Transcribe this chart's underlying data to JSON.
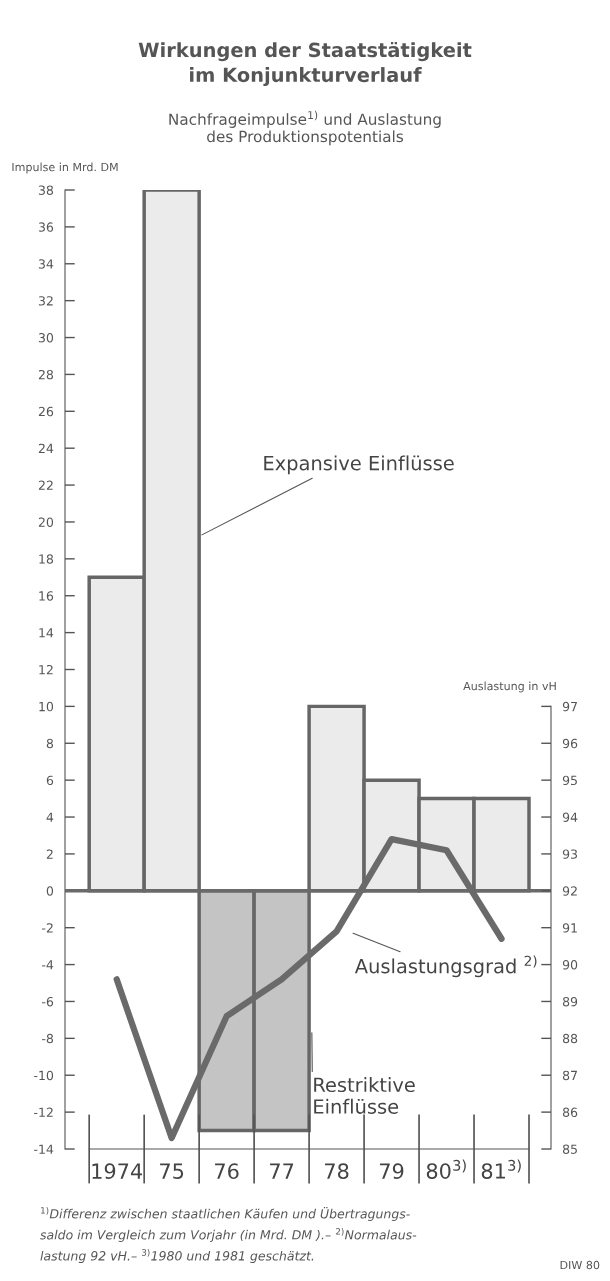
{
  "chart_data": {
    "type": "bar",
    "title": "Wirkungen der Staatstätigkeit\nim Konjunkturverlauf",
    "subtitle": "Nachfrageimpulse$^{1)}$ und Auslastung\ndes Produktionspotentials",
    "ylabel": "Impulse in Mrd. DM",
    "y2label": "Auslastung in vH",
    "categories": [
      "1974",
      "75",
      "76",
      "77",
      "78",
      "79",
      "80$^{3)}$",
      "81$^{3)}$"
    ],
    "series": [
      {
        "type": "bar",
        "name": "Expansive Einflüsse",
        "color": "#ebebeb",
        "values": [
          17,
          38,
          null,
          null,
          10,
          6,
          5,
          5
        ]
      },
      {
        "type": "bar",
        "name": "Restriktive\nEinflüsse",
        "color": "#c4c4c4",
        "values": [
          null,
          null,
          -13,
          -13,
          null,
          null,
          null,
          null
        ]
      },
      {
        "type": "line",
        "axis": "y2",
        "name": "Auslastungsgrad $^{2)}$",
        "color": "#6a6a6a",
        "values": [
          89.6,
          85.3,
          88.6,
          89.6,
          90.9,
          93.4,
          93.1,
          90.7
        ]
      }
    ],
    "ylim": [
      -14,
      38
    ],
    "yticks": [
      -14,
      -12,
      -10,
      -8,
      -6,
      -4,
      -2,
      0,
      2,
      4,
      6,
      8,
      10,
      12,
      14,
      16,
      18,
      20,
      22,
      24,
      26,
      28,
      30,
      32,
      34,
      36,
      38
    ],
    "y2lim": [
      85,
      111
    ],
    "y2ticks": [
      85,
      86,
      87,
      88,
      89,
      90,
      91,
      92,
      93,
      94,
      95,
      96,
      97
    ],
    "ref_lines": [
      {
        "axis": "y",
        "value": 0,
        "color": "#6a6a6a"
      }
    ],
    "annotations": [
      "$^{1)}$Differenz zwischen staatlichen Käufen und Übertragungs-\nsaldo im Vergleich zum Vorjahr (in Mrd. DM ).– $^{2)}$Normalaus-\nlastung 92 vH.– $^{3)}$1980 und 1981 geschätzt.",
      "DIW 80"
    ],
    "grid": false,
    "legend": false,
    "marker": "none",
    "line_style": "solid"
  }
}
